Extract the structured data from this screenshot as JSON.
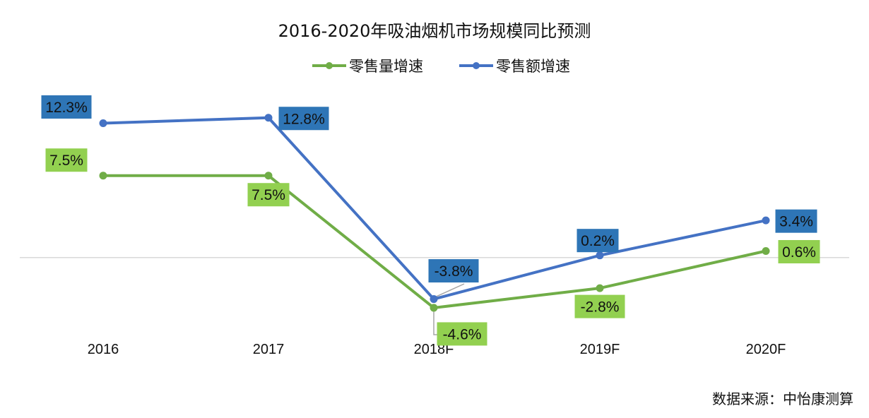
{
  "chart_data": {
    "type": "line",
    "title": "2016-2020年吸油烟机市场规模同比预测",
    "categories": [
      "2016",
      "2017",
      "2018F",
      "2019F",
      "2020F"
    ],
    "series": [
      {
        "name": "零售量增速",
        "color": "#70AD47",
        "label_bg": "#92D050",
        "values": [
          7.5,
          7.5,
          -4.6,
          -2.8,
          0.6
        ],
        "labels": [
          "7.5%",
          "7.5%",
          "-4.6%",
          "-2.8%",
          "0.6%"
        ]
      },
      {
        "name": "零售额增速",
        "color": "#4472C4",
        "label_bg": "#2E75B6",
        "values": [
          12.3,
          12.8,
          -3.8,
          0.2,
          3.4
        ],
        "labels": [
          "12.3%",
          "12.8%",
          "-3.8%",
          "0.2%",
          "3.4%"
        ]
      }
    ],
    "xlabel": "",
    "ylabel": "",
    "ylim": [
      -9,
      14.4
    ],
    "legend": "top",
    "grid": false
  },
  "source": "数据来源：中怡康测算"
}
